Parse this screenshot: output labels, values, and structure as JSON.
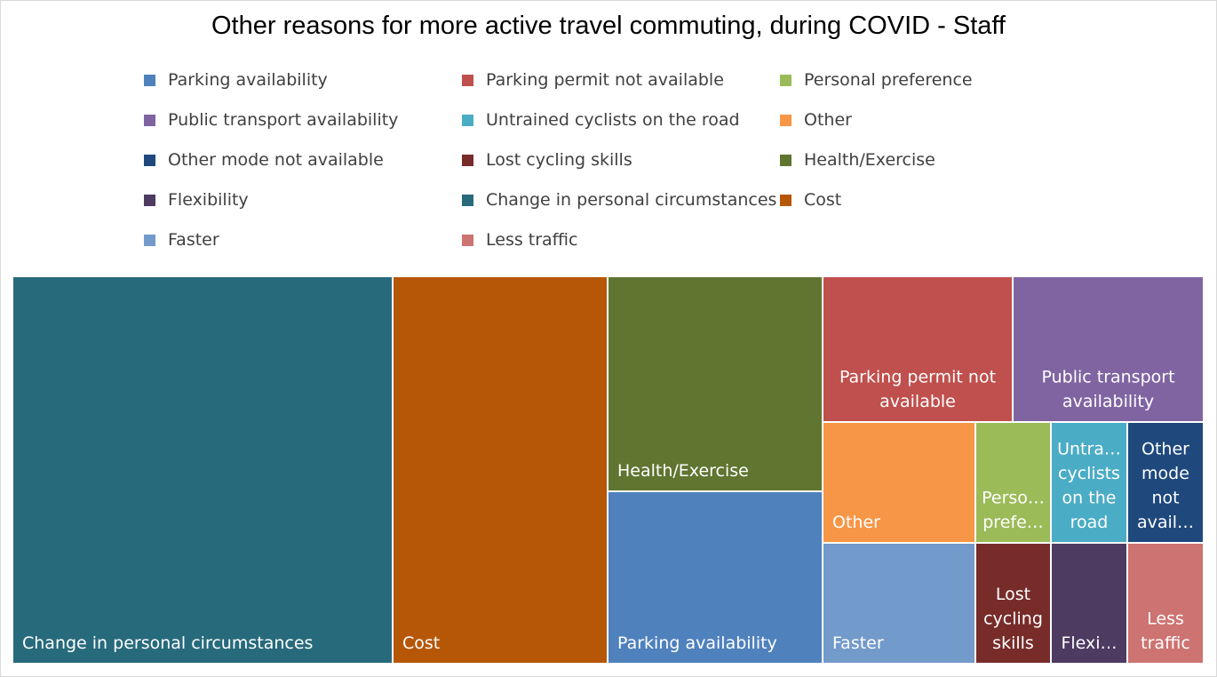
{
  "chart_data": {
    "type": "treemap",
    "title": "Other reasons for more active travel commuting, during COVID - Staff",
    "legend": [
      {
        "label": "Parking availability",
        "color": "#4f81bd"
      },
      {
        "label": "Parking permit not available",
        "color": "#c0504d"
      },
      {
        "label": "Personal preference",
        "color": "#9bbb59"
      },
      {
        "label": "Public transport availability",
        "color": "#8064a2"
      },
      {
        "label": "Untrained cyclists on the road",
        "color": "#4bacc6"
      },
      {
        "label": "Other",
        "color": "#f79646"
      },
      {
        "label": "Other mode not available",
        "color": "#1f497d"
      },
      {
        "label": "Lost cycling skills",
        "color": "#772c2a"
      },
      {
        "label": "Health/Exercise",
        "color": "#5f7530"
      },
      {
        "label": "Flexibility",
        "color": "#4d3b62"
      },
      {
        "label": "Change in personal circumstances",
        "color": "#276a7c"
      },
      {
        "label": "Cost",
        "color": "#b65708"
      },
      {
        "label": "Faster",
        "color": "#729aca"
      },
      {
        "label": "Less traffic",
        "color": "#cd7371"
      }
    ],
    "tiles": [
      {
        "category": "Change in personal circumstances",
        "label_lines": [
          "Change in personal circumstances"
        ],
        "color": "#276a7c",
        "value": 30
      },
      {
        "category": "Cost",
        "label_lines": [
          "Cost"
        ],
        "color": "#b65708",
        "value": 17
      },
      {
        "category": "Health/Exercise",
        "label_lines": [
          "Health/Exercise"
        ],
        "color": "#5f7530",
        "value": 9.5
      },
      {
        "category": "Parking availability",
        "label_lines": [
          "Parking availability"
        ],
        "color": "#4f81bd",
        "value": 7.5
      },
      {
        "category": "Parking permit not available",
        "label_lines": [
          "Parking permit not",
          "available"
        ],
        "color": "#c0504d",
        "value": 5.5
      },
      {
        "category": "Public transport availability",
        "label_lines": [
          "Public transport",
          "availability"
        ],
        "color": "#8064a2",
        "value": 5.5
      },
      {
        "category": "Other",
        "label_lines": [
          "Other"
        ],
        "color": "#f79646",
        "value": 3.5
      },
      {
        "category": "Personal preference",
        "label_lines": [
          "Perso…",
          "prefe…"
        ],
        "color": "#9bbb59",
        "value": 2
      },
      {
        "category": "Untrained cyclists on the road",
        "label_lines": [
          "Untra…",
          "cyclists",
          "on the",
          "road"
        ],
        "color": "#4bacc6",
        "value": 2
      },
      {
        "category": "Other mode not available",
        "label_lines": [
          "Other",
          "mode",
          "not",
          "avail…"
        ],
        "color": "#1f497d",
        "value": 2
      },
      {
        "category": "Faster",
        "label_lines": [
          "Faster"
        ],
        "color": "#729aca",
        "value": 3.5
      },
      {
        "category": "Lost cycling skills",
        "label_lines": [
          "Lost",
          "cycling",
          "skills"
        ],
        "color": "#772c2a",
        "value": 2
      },
      {
        "category": "Flexibility",
        "label_lines": [
          "Flexi…"
        ],
        "color": "#4d3b62",
        "value": 2
      },
      {
        "category": "Less traffic",
        "label_lines": [
          "Less",
          "traffic"
        ],
        "color": "#cd7371",
        "value": 2
      }
    ]
  }
}
